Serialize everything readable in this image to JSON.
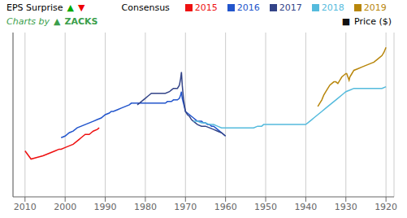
{
  "chart_data": {
    "type": "line",
    "xlim": [
      2013,
      1918
    ],
    "xticks": [
      2010,
      2000,
      1990,
      1980,
      1970,
      1960,
      1950,
      1940,
      1930,
      1920
    ],
    "ylim": [
      0.0,
      1.0
    ],
    "grid": true,
    "tick_labels": "x",
    "annotations": [
      {
        "text": "EPS Surprise"
      },
      {
        "text": "▲",
        "color": "#00aa00"
      },
      {
        "text": "▼",
        "color": "#ee0000"
      },
      {
        "text": "Consensus"
      },
      {
        "text": "■",
        "color": "#111111"
      },
      {
        "text": "Price ($)"
      },
      {
        "text": "Charts by",
        "color": "#3a9e4a"
      },
      {
        "text": "▲",
        "color": "#3a9e4a"
      },
      {
        "text": "ZACKS",
        "color": "#3a9e4a"
      }
    ],
    "series": [
      {
        "name": "2015",
        "color": "#ee1111",
        "x": [
          2010.0,
          2008.5,
          2007.0,
          2005.5,
          2004.5,
          2003.5,
          2002.5,
          2001.5,
          2001.0,
          2000.0,
          1999.0,
          1998.0,
          1997.0,
          1996.5,
          1996.0,
          1995.5,
          1995.0,
          1994.0,
          1993.5,
          1993.0,
          1992.0,
          1991.5
        ],
        "values": [
          0.28,
          0.23,
          0.24,
          0.25,
          0.26,
          0.27,
          0.28,
          0.29,
          0.29,
          0.3,
          0.31,
          0.32,
          0.34,
          0.35,
          0.36,
          0.37,
          0.38,
          0.38,
          0.39,
          0.4,
          0.41,
          0.42
        ]
      },
      {
        "name": "2016",
        "color": "#2255cc",
        "x": [
          2001.0,
          2000.0,
          1999.0,
          1998.0,
          1997.0,
          1996.0,
          1995.0,
          1994.0,
          1993.0,
          1992.0,
          1991.0,
          1990.0,
          1989.0,
          1988.5,
          1988.0,
          1987.0,
          1986.0,
          1985.0,
          1984.0,
          1983.5,
          1983.0,
          1982.5,
          1982.0,
          1981.5,
          1981.0,
          1980.5,
          1980.0,
          1979.5,
          1979.0,
          1978.5,
          1978.0,
          1977.0,
          1976.0,
          1975.0,
          1974.5,
          1974.0,
          1973.5,
          1973.0,
          1972.5,
          1972.0,
          1971.5,
          1971.2,
          1971.0,
          1970.8,
          1970.5,
          1970.2,
          1970.0,
          1969.5,
          1969.0,
          1968.5,
          1968.0,
          1967.5,
          1967.0,
          1966.5,
          1966.0,
          1965.5,
          1965.0,
          1964.5,
          1964.0,
          1963.5,
          1963.0,
          1962.5,
          1962.0,
          1961.5,
          1961.0,
          1960.5,
          1960.0
        ],
        "values": [
          0.36,
          0.37,
          0.39,
          0.4,
          0.42,
          0.43,
          0.44,
          0.45,
          0.46,
          0.47,
          0.48,
          0.5,
          0.51,
          0.52,
          0.52,
          0.53,
          0.54,
          0.55,
          0.56,
          0.57,
          0.57,
          0.57,
          0.57,
          0.57,
          0.57,
          0.57,
          0.57,
          0.57,
          0.57,
          0.57,
          0.57,
          0.57,
          0.57,
          0.57,
          0.58,
          0.58,
          0.58,
          0.59,
          0.59,
          0.59,
          0.6,
          0.62,
          0.64,
          0.6,
          0.57,
          0.54,
          0.52,
          0.51,
          0.5,
          0.49,
          0.48,
          0.47,
          0.46,
          0.46,
          0.46,
          0.45,
          0.45,
          0.44,
          0.44,
          0.43,
          0.43,
          0.42,
          0.41,
          0.4,
          0.39,
          0.38,
          0.37
        ]
      },
      {
        "name": "2017",
        "color": "#334488",
        "x": [
          1982.0,
          1981.5,
          1981.0,
          1980.5,
          1980.0,
          1979.5,
          1979.0,
          1978.5,
          1978.0,
          1977.0,
          1976.0,
          1975.0,
          1974.0,
          1973.5,
          1973.0,
          1972.5,
          1972.0,
          1971.5,
          1971.2,
          1971.0,
          1970.8,
          1970.5,
          1970.2,
          1970.0,
          1969.5,
          1969.0,
          1968.5,
          1968.0,
          1967.0,
          1966.0,
          1965.0,
          1964.0,
          1963.0,
          1962.0,
          1961.0,
          1960.5,
          1960.0
        ],
        "values": [
          0.56,
          0.57,
          0.58,
          0.59,
          0.6,
          0.61,
          0.62,
          0.63,
          0.63,
          0.63,
          0.63,
          0.63,
          0.64,
          0.65,
          0.66,
          0.66,
          0.66,
          0.68,
          0.72,
          0.76,
          0.68,
          0.6,
          0.55,
          0.52,
          0.5,
          0.49,
          0.47,
          0.46,
          0.44,
          0.43,
          0.43,
          0.42,
          0.41,
          0.4,
          0.39,
          0.38,
          0.37
        ]
      },
      {
        "name": "2018",
        "color": "#55bbdd",
        "x": [
          1968.0,
          1967.0,
          1966.0,
          1965.0,
          1964.0,
          1963.0,
          1962.0,
          1961.0,
          1960.0,
          1959.0,
          1958.0,
          1957.5,
          1957.0,
          1956.5,
          1956.0,
          1955.0,
          1954.0,
          1953.0,
          1952.0,
          1951.0,
          1950.5,
          1950.0,
          1949.0,
          1948.0,
          1947.0,
          1946.0,
          1945.5,
          1945.0,
          1944.0,
          1943.0,
          1942.0,
          1941.0,
          1940.5,
          1940.0,
          1939.0,
          1938.5,
          1938.0,
          1937.5,
          1937.0,
          1936.5,
          1936.0,
          1935.0,
          1934.0,
          1933.0,
          1932.0,
          1931.0,
          1930.5,
          1930.0,
          1929.0,
          1928.0,
          1927.0,
          1926.0,
          1925.0,
          1924.0,
          1923.0,
          1922.0,
          1921.0,
          1920.0
        ],
        "values": [
          0.46,
          0.46,
          0.45,
          0.45,
          0.44,
          0.44,
          0.43,
          0.42,
          0.42,
          0.42,
          0.42,
          0.42,
          0.42,
          0.42,
          0.42,
          0.42,
          0.42,
          0.42,
          0.43,
          0.43,
          0.44,
          0.44,
          0.44,
          0.44,
          0.44,
          0.44,
          0.44,
          0.44,
          0.44,
          0.44,
          0.44,
          0.44,
          0.44,
          0.44,
          0.46,
          0.47,
          0.48,
          0.49,
          0.5,
          0.51,
          0.52,
          0.54,
          0.56,
          0.58,
          0.6,
          0.62,
          0.63,
          0.64,
          0.65,
          0.66,
          0.66,
          0.66,
          0.66,
          0.66,
          0.66,
          0.66,
          0.66,
          0.67
        ]
      },
      {
        "name": "2019",
        "color": "#b8860b",
        "x": [
          1937.0,
          1936.5,
          1936.0,
          1935.5,
          1935.0,
          1934.5,
          1934.0,
          1933.5,
          1933.0,
          1932.5,
          1932.0,
          1931.5,
          1931.0,
          1930.5,
          1930.0,
          1929.8,
          1929.5,
          1929.2,
          1929.0,
          1928.5,
          1928.0,
          1927.0,
          1926.0,
          1925.0,
          1924.0,
          1923.0,
          1922.0,
          1921.0,
          1920.5,
          1920.0
        ],
        "values": [
          0.55,
          0.57,
          0.59,
          0.62,
          0.64,
          0.66,
          0.68,
          0.69,
          0.7,
          0.7,
          0.69,
          0.71,
          0.73,
          0.74,
          0.75,
          0.75,
          0.73,
          0.71,
          0.73,
          0.75,
          0.77,
          0.78,
          0.79,
          0.8,
          0.81,
          0.82,
          0.84,
          0.86,
          0.88,
          0.91
        ]
      }
    ]
  }
}
